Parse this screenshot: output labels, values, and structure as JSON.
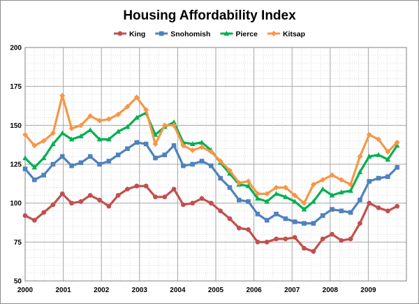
{
  "chart_data": {
    "type": "line",
    "title": "Housing Affordability Index",
    "xlabel": "",
    "ylabel": "",
    "xlim": [
      2000,
      2010
    ],
    "ylim": [
      50,
      200
    ],
    "x_ticks": [
      "2000",
      "2001",
      "2002",
      "2003",
      "2004",
      "2005",
      "2006",
      "2007",
      "2008",
      "2009"
    ],
    "y_ticks": [
      "50",
      "75",
      "100",
      "125",
      "150",
      "175",
      "200"
    ],
    "grid": "major and minor",
    "legend_position": "top-center",
    "series": [
      {
        "name": "King",
        "color": "#c0504d",
        "marker": "circle",
        "values": [
          92,
          89,
          94,
          99,
          106,
          100,
          101,
          105,
          102,
          98,
          105,
          109,
          111,
          111,
          104,
          104,
          109,
          99,
          100,
          103,
          100,
          95,
          90,
          84,
          83,
          75,
          75,
          77,
          77,
          78,
          71,
          69,
          77,
          80,
          76,
          77,
          87,
          100,
          97,
          95,
          98
        ]
      },
      {
        "name": "Snohomish",
        "color": "#4f81bd",
        "marker": "square",
        "values": [
          122,
          115,
          118,
          125,
          130,
          124,
          126,
          130,
          125,
          127,
          131,
          135,
          139,
          138,
          129,
          131,
          137,
          124,
          125,
          127,
          124,
          116,
          110,
          102,
          101,
          93,
          89,
          93,
          90,
          88,
          87,
          87,
          92,
          96,
          95,
          94,
          102,
          114,
          116,
          117,
          123
        ]
      },
      {
        "name": "Pierce",
        "color": "#00b050",
        "marker": "triangle",
        "values": [
          129,
          123,
          129,
          138,
          145,
          141,
          143,
          147,
          141,
          141,
          146,
          149,
          155,
          158,
          144,
          149,
          152,
          139,
          138,
          139,
          134,
          126,
          119,
          112,
          111,
          103,
          101,
          106,
          104,
          101,
          96,
          101,
          109,
          105,
          107,
          108,
          120,
          130,
          131,
          128,
          137
        ]
      },
      {
        "name": "Kitsap",
        "color": "#f79646",
        "marker": "diamond",
        "values": [
          144,
          137,
          140,
          145,
          169,
          148,
          150,
          156,
          153,
          154,
          157,
          162,
          168,
          160,
          138,
          150,
          150,
          137,
          134,
          136,
          133,
          127,
          121,
          113,
          114,
          106,
          106,
          110,
          110,
          105,
          100,
          112,
          115,
          118,
          115,
          112,
          130,
          144,
          141,
          133,
          139
        ]
      }
    ]
  }
}
